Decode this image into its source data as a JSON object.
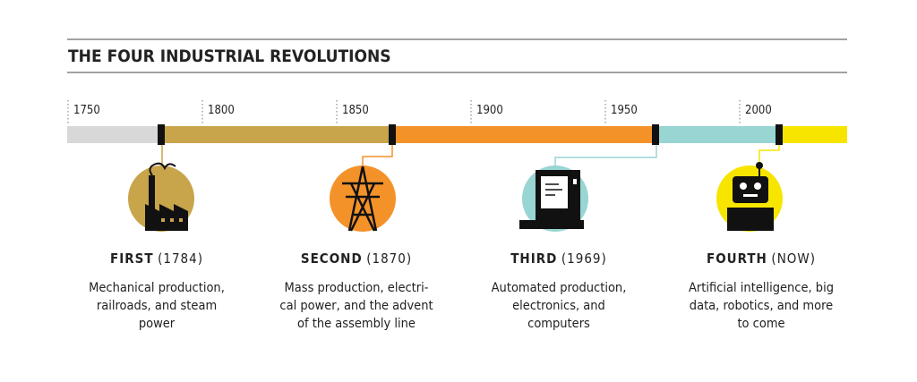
{
  "header": {
    "title": "THE FOUR INDUSTRIAL REVOLUTIONS"
  },
  "timeline": {
    "ticks": [
      "1750",
      "1800",
      "1850",
      "1900",
      "1950",
      "2000"
    ]
  },
  "revolutions": [
    {
      "name": "FIRST",
      "date": "(1784)",
      "description": [
        "Mechanical production,",
        "railroads, and steam",
        "power"
      ]
    },
    {
      "name": "SECOND",
      "date": "(1870)",
      "description": [
        "Mass production, electri-",
        "cal power, and the advent",
        "of the assembly line"
      ]
    },
    {
      "name": "THIRD",
      "date": "(1969)",
      "description": [
        "Automated production,",
        "electronics, and",
        "computers"
      ]
    },
    {
      "name": "FOURTH",
      "date": "(NOW)",
      "description": [
        "Artificial intelligence, big",
        "data, robotics, and more",
        "to come"
      ]
    }
  ]
}
